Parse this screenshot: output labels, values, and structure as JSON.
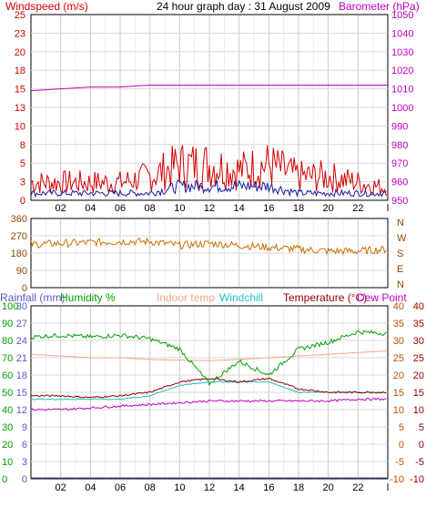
{
  "title": "24 hour graph day : 31 August 2009",
  "colors": {
    "windspeed": "#d40000",
    "windavg": "#1a1aa0",
    "barometer": "#c000c0",
    "direction": "#c87000",
    "rainfall": "#5a5ac8",
    "humidity": "#00a000",
    "indoor": "#f0a888",
    "windchill": "#20c0c0",
    "temperature": "#900000",
    "dewpoint": "#c000c0",
    "grid": "#d8d8d8",
    "axisleft_dir": "#8b4a00",
    "axis_right_temp": "#c05000"
  },
  "x_ticks": [
    "02",
    "04",
    "06",
    "08",
    "10",
    "12",
    "14",
    "16",
    "18",
    "20",
    "22"
  ],
  "x_end_label": "l",
  "chart_data": [
    {
      "type": "line",
      "name": "wind-barometer",
      "left_label": "Windspeed (m/s)",
      "right_label": "Barometer (hPa)",
      "left_ticks": [
        "0",
        "3",
        "5",
        "8",
        "10",
        "13",
        "15",
        "18",
        "20",
        "23",
        "25"
      ],
      "left_ylim": [
        0,
        25
      ],
      "right_ticks": [
        "950",
        "960",
        "970",
        "980",
        "990",
        "1000",
        "1010",
        "1020",
        "1030",
        "1040",
        "1050"
      ],
      "right_ylim": [
        950,
        1050
      ],
      "x": [
        0,
        2,
        4,
        6,
        8,
        10,
        12,
        14,
        16,
        18,
        20,
        22,
        24
      ],
      "series": [
        {
          "name": "gust",
          "values": [
            3,
            3,
            3,
            3,
            4,
            6,
            6,
            5,
            6,
            4,
            4,
            3,
            2
          ]
        },
        {
          "name": "average",
          "values": [
            1,
            1,
            1,
            1,
            1,
            2,
            2,
            2,
            2,
            1,
            1,
            1,
            1
          ]
        },
        {
          "name": "barometer",
          "values": [
            1009,
            1010,
            1011,
            1011,
            1012,
            1012,
            1012,
            1012,
            1012,
            1012,
            1012,
            1012,
            1012
          ]
        }
      ]
    },
    {
      "type": "line",
      "name": "wind-direction",
      "left_ticks": [
        "0",
        "90",
        "180",
        "270",
        "360"
      ],
      "right_ticks": [
        "N",
        "W",
        "S",
        "E",
        "N"
      ],
      "ylim": [
        0,
        360
      ],
      "x": [
        0,
        2,
        4,
        6,
        8,
        10,
        12,
        14,
        16,
        18,
        20,
        22,
        24
      ],
      "values": [
        225,
        230,
        235,
        240,
        240,
        220,
        230,
        220,
        210,
        200,
        190,
        190,
        200
      ]
    },
    {
      "type": "line",
      "name": "temperature-humidity",
      "labels": {
        "rainfall": "Rainfall (mm)",
        "humidity": "Humidity %",
        "indoor": "Indoor temp",
        "windchill": "Windchill",
        "temperature": "Temperature (°C)",
        "dewpoint": "Dew Point"
      },
      "rain_ticks": [
        "0",
        "3",
        "6",
        "9",
        "12",
        "15",
        "18",
        "21",
        "24",
        "27",
        "30"
      ],
      "humidity_ticks": [
        "0",
        "10",
        "20",
        "30",
        "40",
        "50",
        "60",
        "70",
        "80",
        "90",
        "100"
      ],
      "temp_ticks_left": [
        "-10",
        "-5",
        "0",
        "5",
        "10",
        "15",
        "20",
        "25",
        "30",
        "35",
        "40"
      ],
      "temp_ticks_right": [
        "-10",
        "-5",
        "0",
        "5",
        "10",
        "15",
        "20",
        "25",
        "30",
        "35",
        "40"
      ],
      "temp_ylim": [
        -10,
        40
      ],
      "x": [
        0,
        2,
        4,
        6,
        8,
        10,
        12,
        14,
        16,
        18,
        20,
        22,
        24
      ],
      "series": [
        {
          "name": "humidity",
          "values": [
            82,
            83,
            82,
            83,
            81,
            75,
            55,
            68,
            60,
            75,
            79,
            85,
            84
          ]
        },
        {
          "name": "indoor",
          "values": [
            26,
            25.5,
            25,
            25,
            24.5,
            24.3,
            24.2,
            24.5,
            25,
            25.5,
            26,
            26.5,
            27
          ]
        },
        {
          "name": "temperature",
          "values": [
            14,
            14,
            13.5,
            14,
            15,
            18,
            19,
            18,
            19,
            16,
            15,
            15,
            15
          ]
        },
        {
          "name": "windchill",
          "values": [
            13,
            13,
            13,
            13,
            14,
            17,
            18,
            18,
            18,
            15,
            15,
            15,
            15
          ]
        },
        {
          "name": "dewpoint",
          "values": [
            10,
            10,
            10.5,
            11,
            11.5,
            12,
            12.5,
            12.5,
            12.5,
            12.5,
            12.5,
            13,
            13
          ]
        },
        {
          "name": "rainfall",
          "values": [
            0,
            0,
            0,
            0,
            0,
            0,
            0,
            0,
            0,
            0,
            0,
            0,
            0
          ]
        }
      ]
    }
  ]
}
